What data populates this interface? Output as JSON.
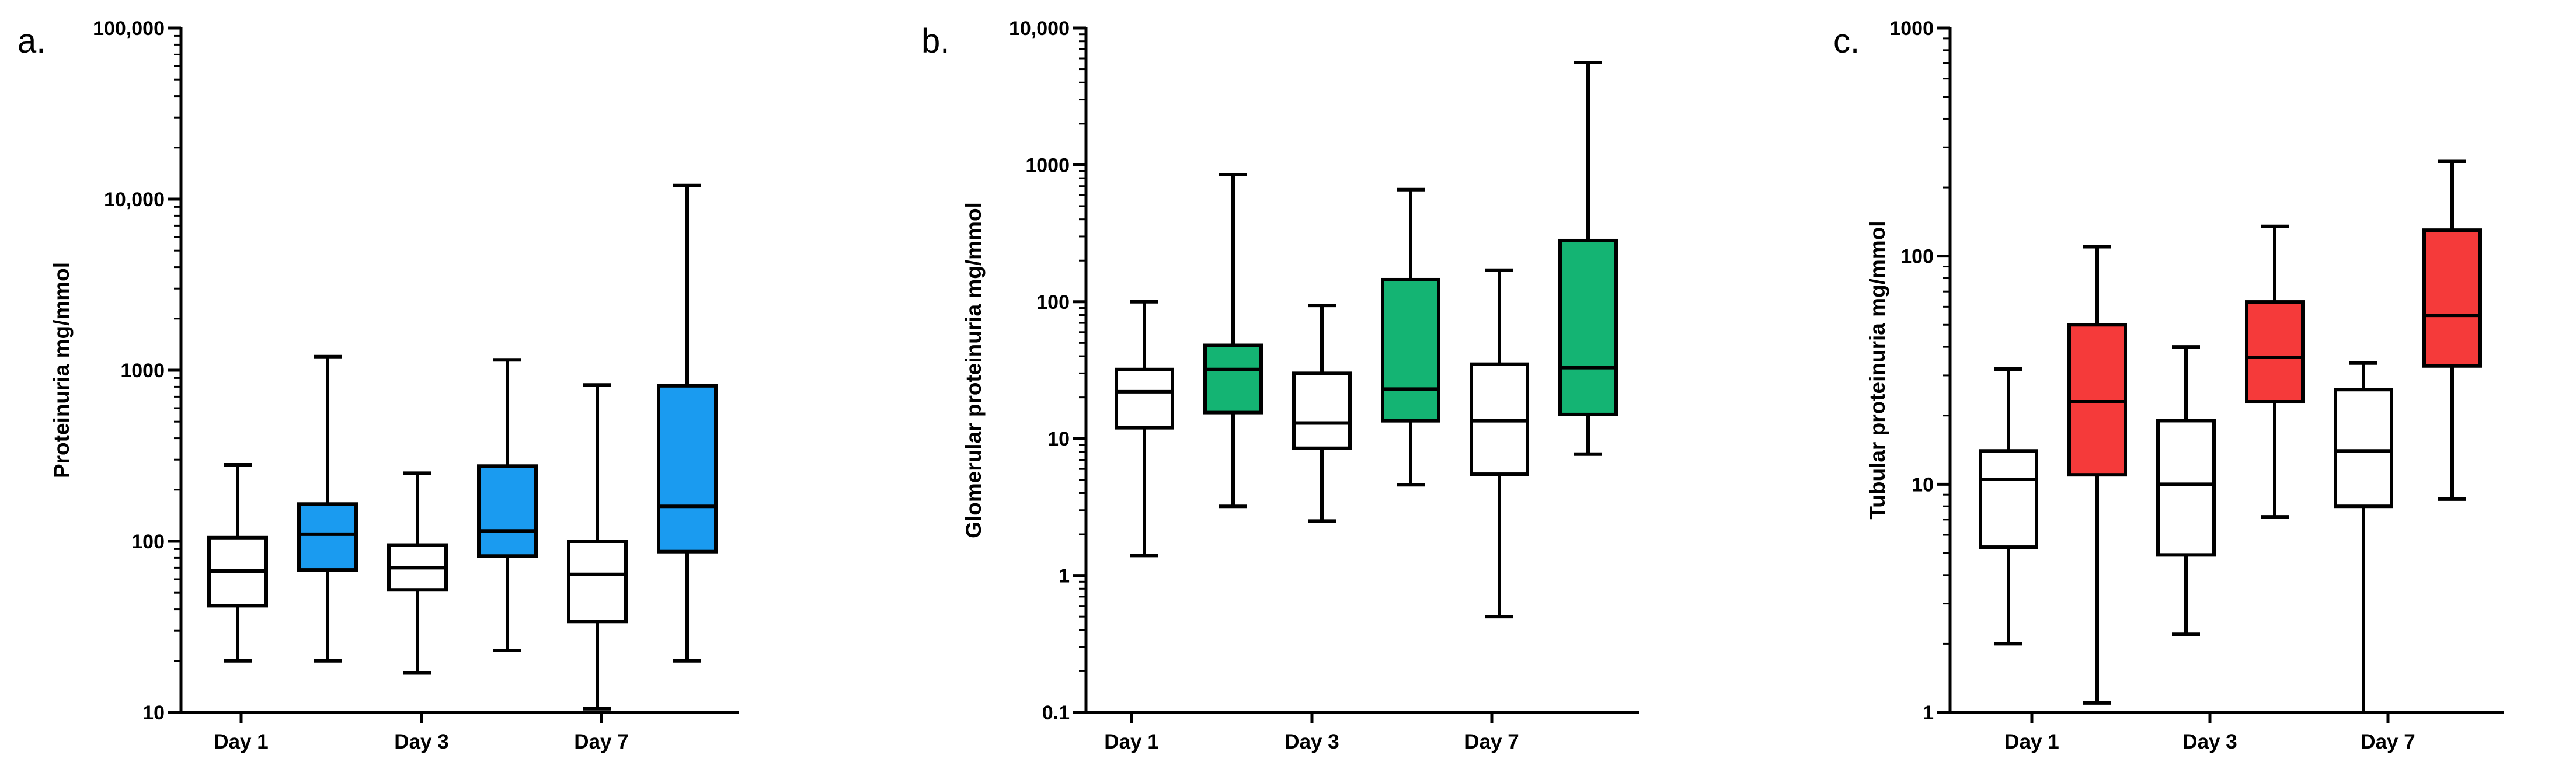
{
  "chart_data": [
    {
      "type": "box",
      "panel_label": "a.",
      "ylabel": "Proteinuria mg/mmol",
      "yscale": "log",
      "ylim": [
        10,
        100000
      ],
      "yticks": [
        10,
        100,
        1000,
        10000,
        100000
      ],
      "ytick_labels": [
        "10",
        "100",
        "1000",
        "10,000",
        "100,000"
      ],
      "categories": [
        "Day 1",
        "Day 3",
        "Day 7"
      ],
      "fill_color": "#1a9bf0",
      "boxes": [
        {
          "group": "Day 1",
          "filled": false,
          "min": 20,
          "q1": 42,
          "median": 67,
          "q3": 105,
          "max": 280
        },
        {
          "group": "Day 1",
          "filled": true,
          "min": 20,
          "q1": 68,
          "median": 110,
          "q3": 165,
          "max": 1200
        },
        {
          "group": "Day 3",
          "filled": false,
          "min": 17,
          "q1": 52,
          "median": 70,
          "q3": 95,
          "max": 250
        },
        {
          "group": "Day 3",
          "filled": true,
          "min": 23,
          "q1": 82,
          "median": 115,
          "q3": 275,
          "max": 1150
        },
        {
          "group": "Day 7",
          "filled": false,
          "min": 10.5,
          "q1": 34,
          "median": 64,
          "q3": 100,
          "max": 820
        },
        {
          "group": "Day 7",
          "filled": true,
          "min": 20,
          "q1": 87,
          "median": 160,
          "q3": 810,
          "max": 12000
        }
      ]
    },
    {
      "type": "box",
      "panel_label": "b.",
      "ylabel": "Glomerular proteinuria mg/mmol",
      "yscale": "log",
      "ylim": [
        0.1,
        10000
      ],
      "yticks": [
        0.1,
        1,
        10,
        100,
        1000,
        10000
      ],
      "ytick_labels": [
        "0.1",
        "1",
        "10",
        "100",
        "1000",
        "10,000"
      ],
      "categories": [
        "Day 1",
        "Day 3",
        "Day 7"
      ],
      "fill_color": "#14b473",
      "boxes": [
        {
          "group": "Day 1",
          "filled": false,
          "min": 1.4,
          "q1": 12,
          "median": 22,
          "q3": 32,
          "max": 100
        },
        {
          "group": "Day 1",
          "filled": true,
          "min": 3.2,
          "q1": 15.5,
          "median": 32,
          "q3": 48,
          "max": 850
        },
        {
          "group": "Day 3",
          "filled": false,
          "min": 2.5,
          "q1": 8.5,
          "median": 13,
          "q3": 30,
          "max": 94
        },
        {
          "group": "Day 3",
          "filled": true,
          "min": 4.6,
          "q1": 13.5,
          "median": 23,
          "q3": 145,
          "max": 660
        },
        {
          "group": "Day 7",
          "filled": false,
          "min": 0.5,
          "q1": 5.5,
          "median": 13.5,
          "q3": 35,
          "max": 170
        },
        {
          "group": "Day 7",
          "filled": true,
          "min": 7.7,
          "q1": 15,
          "median": 33,
          "q3": 280,
          "max": 5600
        }
      ]
    },
    {
      "type": "box",
      "panel_label": "c.",
      "ylabel": "Tubular proteinuria mg/mmol",
      "yscale": "log",
      "ylim": [
        1,
        1000
      ],
      "yticks": [
        1,
        10,
        100,
        1000
      ],
      "ytick_labels": [
        "1",
        "10",
        "100",
        "1000"
      ],
      "categories": [
        "Day 1",
        "Day 3",
        "Day 7"
      ],
      "fill_color": "#f53a3a",
      "boxes": [
        {
          "group": "Day 1",
          "filled": false,
          "min": 2,
          "q1": 5.3,
          "median": 10.5,
          "q3": 14,
          "max": 32
        },
        {
          "group": "Day 1",
          "filled": true,
          "min": 1.1,
          "q1": 11,
          "median": 23,
          "q3": 50,
          "max": 110
        },
        {
          "group": "Day 3",
          "filled": false,
          "min": 2.2,
          "q1": 4.9,
          "median": 10,
          "q3": 19,
          "max": 40
        },
        {
          "group": "Day 3",
          "filled": true,
          "min": 7.2,
          "q1": 23,
          "median": 36,
          "q3": 63,
          "max": 135
        },
        {
          "group": "Day 7",
          "filled": false,
          "min": 1,
          "q1": 8,
          "median": 14,
          "q3": 26,
          "max": 34
        },
        {
          "group": "Day 7",
          "filled": true,
          "min": 8.6,
          "q1": 33,
          "median": 55,
          "q3": 130,
          "max": 260
        }
      ]
    }
  ]
}
